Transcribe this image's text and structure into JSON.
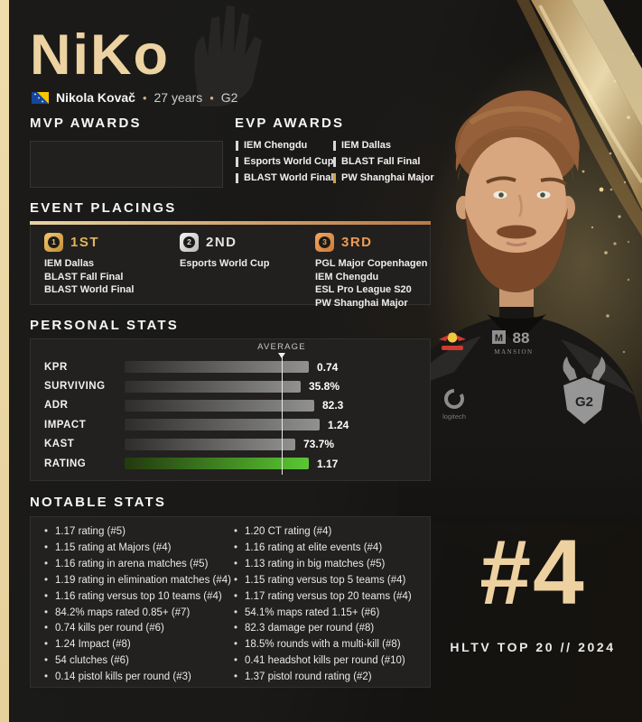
{
  "meta": {
    "rank_number": "#4",
    "rank_footer": "HLTV TOP 20 // 2024"
  },
  "header": {
    "title": "NiKo",
    "flag": "bosnia-herzegovina-flag",
    "name": "Nikola Kovač",
    "age": "27 years",
    "team": "G2",
    "dot": "•"
  },
  "mvp": {
    "title": "MVP AWARDS",
    "items": []
  },
  "evp": {
    "title": "EVP AWARDS",
    "items": [
      {
        "label": "IEM Chengdu",
        "gold": false
      },
      {
        "label": "Esports World Cup",
        "gold": false
      },
      {
        "label": "BLAST World Final",
        "gold": false
      },
      {
        "label": "IEM Dallas",
        "gold": false
      },
      {
        "label": "BLAST Fall Final",
        "gold": false
      },
      {
        "label": "PW Shanghai Major",
        "gold": true
      }
    ]
  },
  "placings": {
    "title": "EVENT PLACINGS",
    "groups": [
      {
        "rank": "1ST",
        "num": "1",
        "tier": "gold",
        "events": [
          "IEM Dallas",
          "BLAST Fall Final",
          "BLAST World Final"
        ]
      },
      {
        "rank": "2ND",
        "num": "2",
        "tier": "silver",
        "events": [
          "Esports World Cup"
        ]
      },
      {
        "rank": "3RD",
        "num": "3",
        "tier": "bronze",
        "events": [
          "PGL Major Copenhagen",
          "IEM Chengdu",
          "ESL Pro League S20",
          "PW Shanghai Major"
        ]
      }
    ]
  },
  "personal": {
    "title": "PERSONAL STATS",
    "average_label": "AVERAGE"
  },
  "chart_data": {
    "type": "bar",
    "title": "PERSONAL STATS",
    "orientation": "horizontal",
    "categories": [
      "KPR",
      "SURVIVING",
      "ADR",
      "IMPACT",
      "KAST",
      "RATING"
    ],
    "values": [
      0.74,
      35.8,
      82.3,
      1.24,
      73.7,
      1.17
    ],
    "value_labels": [
      "0.74",
      "35.8%",
      "82.3",
      "1.24",
      "73.7%",
      "1.17"
    ],
    "bar_length_pct": [
      68,
      65,
      70,
      72,
      63,
      68
    ],
    "average_marker_pct": 58,
    "highlight_index": 5,
    "annotation": "AVERAGE",
    "bar_color": "#91918f",
    "highlight_color": "#5ac832",
    "legend": "none",
    "grid": "off"
  },
  "notable": {
    "title": "NOTABLE STATS",
    "left": [
      "1.17 rating (#5)",
      "1.15 rating at Majors (#4)",
      "1.16 rating in arena matches (#5)",
      "1.19 rating in elimination matches (#4)",
      "1.16 rating versus top 10 teams (#4)",
      "84.2% maps rated 0.85+ (#7)",
      "0.74 kills per round (#6)",
      "1.24 Impact (#8)",
      "54 clutches (#6)",
      "0.14 pistol kills per round (#3)"
    ],
    "right": [
      "1.20 CT rating (#4)",
      "1.16 rating at elite events (#4)",
      "1.13 rating in big matches (#5)",
      "1.15 rating versus top 5 teams (#4)",
      "1.17 rating versus top 20 teams (#4)",
      "54.1% maps rated 1.15+ (#6)",
      "82.3 damage per round (#8)",
      "18.5% rounds with a multi-kill (#8)",
      "0.41 headshot kills per round (#10)",
      "1.37 pistol round rating (#2)"
    ]
  },
  "colors": {
    "accent_tan": "#ecd3a1",
    "gold": "#d2a440",
    "silver": "#e2e2e2",
    "bronze": "#ee9b52",
    "rating_green": "#5ac832",
    "divider_from": "#e9d3a2",
    "divider_to": "#b97a45",
    "panel_bg": "#22211f",
    "page_bg": "#1a1918"
  }
}
